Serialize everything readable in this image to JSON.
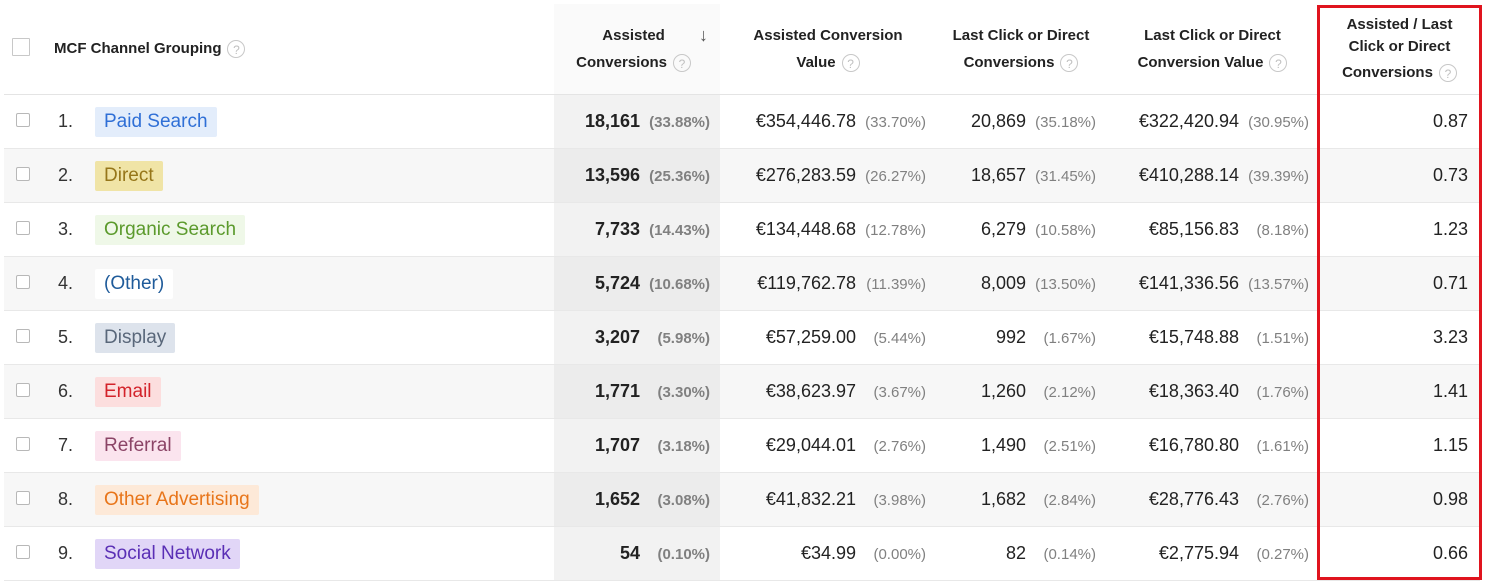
{
  "header": {
    "grouping_label": "MCF Channel Grouping",
    "assisted_conv_line1": "Assisted",
    "assisted_conv_line2": "Conversions",
    "assisted_value_line1": "Assisted Conversion",
    "assisted_value_line2": "Value",
    "last_click_conv_line1": "Last Click or Direct",
    "last_click_conv_line2": "Conversions",
    "last_click_value_line1": "Last Click or Direct",
    "last_click_value_line2": "Conversion Value",
    "ratio_line1": "Assisted / Last",
    "ratio_line2": "Click or Direct",
    "ratio_line3": "Conversions",
    "help_glyph": "?",
    "sort_glyph": "↓"
  },
  "rows": [
    {
      "rank": "1.",
      "channel": "Paid Search",
      "chip_bg": "#e3edfb",
      "chip_fg": "#2f6fd6",
      "assisted": "18,161",
      "assisted_pct": "(33.88%)",
      "assisted_value": "€354,446.78",
      "assisted_value_pct": "(33.70%)",
      "last_conv": "20,869",
      "last_conv_pct": "(35.18%)",
      "last_value": "€322,420.94",
      "last_value_pct": "(30.95%)",
      "ratio": "0.87"
    },
    {
      "rank": "2.",
      "channel": "Direct",
      "chip_bg": "#f0e4a6",
      "chip_fg": "#96761a",
      "assisted": "13,596",
      "assisted_pct": "(25.36%)",
      "assisted_value": "€276,283.59",
      "assisted_value_pct": "(26.27%)",
      "last_conv": "18,657",
      "last_conv_pct": "(31.45%)",
      "last_value": "€410,288.14",
      "last_value_pct": "(39.39%)",
      "ratio": "0.73"
    },
    {
      "rank": "3.",
      "channel": "Organic Search",
      "chip_bg": "#eff8e8",
      "chip_fg": "#5b9a2c",
      "assisted": "7,733",
      "assisted_pct": "(14.43%)",
      "assisted_value": "€134,448.68",
      "assisted_value_pct": "(12.78%)",
      "last_conv": "6,279",
      "last_conv_pct": "(10.58%)",
      "last_value": "€85,156.83",
      "last_value_pct": "(8.18%)",
      "ratio": "1.23"
    },
    {
      "rank": "4.",
      "channel": "(Other)",
      "chip_bg": "#ffffff",
      "chip_fg": "#1f5b9a",
      "assisted": "5,724",
      "assisted_pct": "(10.68%)",
      "assisted_value": "€119,762.78",
      "assisted_value_pct": "(11.39%)",
      "last_conv": "8,009",
      "last_conv_pct": "(13.50%)",
      "last_value": "€141,336.56",
      "last_value_pct": "(13.57%)",
      "ratio": "0.71"
    },
    {
      "rank": "5.",
      "channel": "Display",
      "chip_bg": "#dde3ec",
      "chip_fg": "#59677a",
      "assisted": "3,207",
      "assisted_pct": "(5.98%)",
      "assisted_value": "€57,259.00",
      "assisted_value_pct": "(5.44%)",
      "last_conv": "992",
      "last_conv_pct": "(1.67%)",
      "last_value": "€15,748.88",
      "last_value_pct": "(1.51%)",
      "ratio": "3.23"
    },
    {
      "rank": "6.",
      "channel": "Email",
      "chip_bg": "#fcdede",
      "chip_fg": "#d3222a",
      "assisted": "1,771",
      "assisted_pct": "(3.30%)",
      "assisted_value": "€38,623.97",
      "assisted_value_pct": "(3.67%)",
      "last_conv": "1,260",
      "last_conv_pct": "(2.12%)",
      "last_value": "€18,363.40",
      "last_value_pct": "(1.76%)",
      "ratio": "1.41"
    },
    {
      "rank": "7.",
      "channel": "Referral",
      "chip_bg": "#fbe4ee",
      "chip_fg": "#8b4466",
      "assisted": "1,707",
      "assisted_pct": "(3.18%)",
      "assisted_value": "€29,044.01",
      "assisted_value_pct": "(2.76%)",
      "last_conv": "1,490",
      "last_conv_pct": "(2.51%)",
      "last_value": "€16,780.80",
      "last_value_pct": "(1.61%)",
      "ratio": "1.15"
    },
    {
      "rank": "8.",
      "channel": "Other Advertising",
      "chip_bg": "#fde9d8",
      "chip_fg": "#e8751a",
      "assisted": "1,652",
      "assisted_pct": "(3.08%)",
      "assisted_value": "€41,832.21",
      "assisted_value_pct": "(3.98%)",
      "last_conv": "1,682",
      "last_conv_pct": "(2.84%)",
      "last_value": "€28,776.43",
      "last_value_pct": "(2.76%)",
      "ratio": "0.98"
    },
    {
      "rank": "9.",
      "channel": "Social Network",
      "chip_bg": "#e1d6f7",
      "chip_fg": "#5a2fb5",
      "assisted": "54",
      "assisted_pct": "(0.10%)",
      "assisted_value": "€34.99",
      "assisted_value_pct": "(0.00%)",
      "last_conv": "82",
      "last_conv_pct": "(0.14%)",
      "last_value": "€2,775.94",
      "last_value_pct": "(0.27%)",
      "ratio": "0.66"
    }
  ],
  "colors": {
    "highlight_border": "#e0141e",
    "sorted_column_bg": "#ececec"
  }
}
